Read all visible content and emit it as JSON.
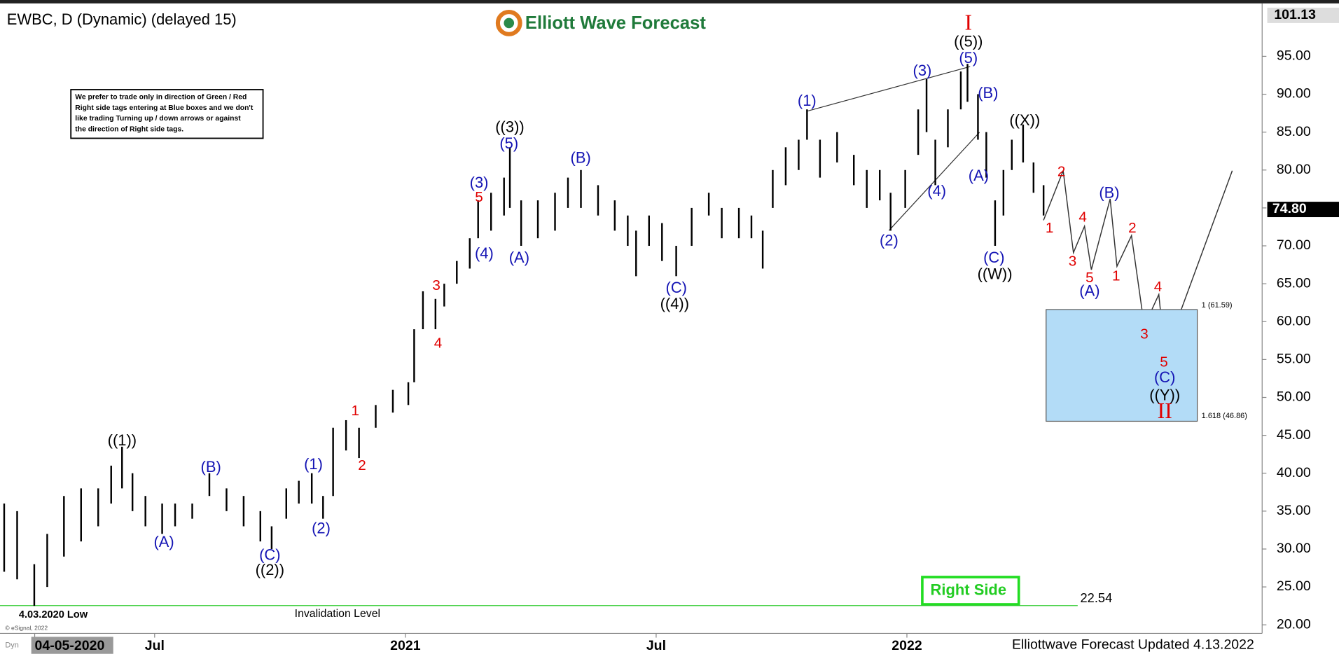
{
  "chart_data": {
    "type": "ohlc",
    "title": "EWBC, D (Dynamic) (delayed 15)",
    "logo": "Elliott Wave Forecast",
    "note": [
      "We prefer to trade only in direction of Green / Red",
      "Right side tags entering at Blue boxes and we don't",
      "like trading Turning up / down arrows or against",
      "the direction of Right side tags."
    ],
    "footer": "Elliottwave Forecast Updated 4.13.2022",
    "copyright": "© eSignal, 2022",
    "corner": "Dyn",
    "right_side": "Right Side",
    "color": "#000000",
    "x": [
      2.4,
      2.71,
      3.12,
      3.43,
      3.83,
      4.24,
      4.65,
      4.96,
      5.22,
      5.47,
      5.78,
      6.18,
      6.49,
      6.9,
      7.31,
      7.72,
      8.13,
      8.53,
      8.8,
      9.15,
      9.45,
      9.76,
      10.03,
      10.27,
      10.58,
      10.89,
      11.29,
      11.7,
      12.07,
      12.21,
      12.42,
      12.72,
      12.93,
      13.23,
      13.54,
      13.74,
      14.05,
      14.36,
      14.5,
      14.77,
      15.17,
      15.58,
      15.89,
      16.2,
      16.61,
      17.01,
      17.32,
      17.52,
      17.83,
      18.14,
      18.48,
      18.85,
      19.26,
      19.57,
      19.98,
      20.28,
      20.55,
      20.79,
      21.1,
      21.41,
      21.61,
      21.92,
      22.33,
      22.73,
      23.04,
      23.35,
      23.61,
      23.96,
      24.27,
      24.47,
      24.68,
      24.98,
      25.29,
      25.45,
      25.7,
      25.9,
      26.11,
      26.31,
      26.51,
      26.78,
      27.03,
      27.27
    ],
    "high": [
      36,
      35,
      28,
      32,
      37,
      38,
      38,
      41,
      43.5,
      40,
      37,
      36,
      36,
      36,
      40,
      38,
      37,
      35,
      33,
      38,
      39,
      40,
      37,
      46,
      47,
      46,
      49,
      51,
      52,
      59,
      64,
      63,
      65,
      68,
      71,
      76,
      77,
      79,
      83,
      76,
      76,
      77,
      79,
      80,
      78,
      76,
      74,
      72,
      74,
      73,
      70,
      75,
      77,
      75,
      75,
      74,
      72,
      80,
      83,
      84,
      88,
      84,
      85,
      82,
      80,
      80,
      77,
      80,
      88,
      92,
      84,
      88,
      93,
      94,
      90,
      85,
      76,
      80,
      84,
      86,
      81,
      78
    ],
    "low": [
      27,
      26,
      22.5,
      25,
      29,
      31,
      33,
      36,
      38,
      35,
      33,
      32,
      33,
      34,
      37,
      35,
      33,
      31,
      30,
      34,
      36,
      36,
      34,
      37,
      43,
      42,
      46,
      48,
      49,
      52,
      59,
      59,
      62,
      65,
      67,
      71,
      72,
      74,
      75,
      70,
      71,
      72,
      75,
      75,
      74,
      72,
      70,
      66,
      70,
      68,
      66,
      70,
      74,
      71,
      71,
      71,
      67,
      75,
      78,
      80,
      84,
      79,
      81,
      78,
      75,
      76,
      72,
      75,
      82,
      85,
      78,
      83,
      88,
      89,
      84,
      79,
      70,
      74,
      80,
      81,
      77,
      74
    ],
    "xlim": [
      2.3,
      32.5
    ],
    "xticks": [
      {
        "value": 3.13,
        "label": "04-05-2020"
      },
      {
        "value": 6,
        "label": "Jul"
      },
      {
        "value": 12,
        "label": "2021"
      },
      {
        "value": 18,
        "label": "Jul"
      },
      {
        "value": 24,
        "label": "2022"
      }
    ],
    "ylim": [
      18.87,
      101.53
    ],
    "yticks": [
      {
        "value": 20,
        "label": "20.00"
      },
      {
        "value": 25,
        "label": "25.00"
      },
      {
        "value": 30,
        "label": "30.00"
      },
      {
        "value": 35,
        "label": "35.00"
      },
      {
        "value": 40,
        "label": "40.00"
      },
      {
        "value": 45,
        "label": "45.00"
      },
      {
        "value": 50,
        "label": "50.00"
      },
      {
        "value": 55,
        "label": "55.00"
      },
      {
        "value": 60,
        "label": "60.00"
      },
      {
        "value": 65,
        "label": "65.00"
      },
      {
        "value": 70,
        "label": "70.00"
      },
      {
        "value": 75,
        "label": "75.00"
      },
      {
        "value": 80,
        "label": "80.00"
      },
      {
        "value": 85,
        "label": "85.00"
      },
      {
        "value": 90,
        "label": "90.00"
      },
      {
        "value": 95,
        "label": "95.00"
      }
    ],
    "high_marker": 101.13,
    "last_price": {
      "value": 74.8,
      "label": "74.80"
    },
    "invalidation": {
      "value": 22.54,
      "text": "Invalidation Level",
      "low_label": "4.03.2020 Low"
    },
    "blue_box": {
      "top": 61.59,
      "bottom": 46.86,
      "top_label": "1 (61.59)",
      "bottom_label": "1.618 (46.86)",
      "color": "#b3dcf7"
    },
    "annotations": [
      "((1))",
      "((2))",
      "((3))",
      "((4))",
      "((5))",
      "((W))",
      "((X))",
      "((Y))",
      "(A)",
      "(B)",
      "(C)",
      "(1)",
      "(2)",
      "(3)",
      "(5)",
      "(4)",
      "(A)",
      "(B)",
      "(C)",
      "(1)",
      "(2)",
      "(3)",
      "(4)",
      "(5)",
      "(B)",
      "(A)",
      "(C)",
      "(B)",
      "(A)",
      "(C)",
      "1",
      "2",
      "3",
      "4",
      "5",
      "1",
      "2",
      "3",
      "4",
      "5",
      "2",
      "1",
      "4",
      "3",
      "5",
      "I",
      "II"
    ]
  }
}
